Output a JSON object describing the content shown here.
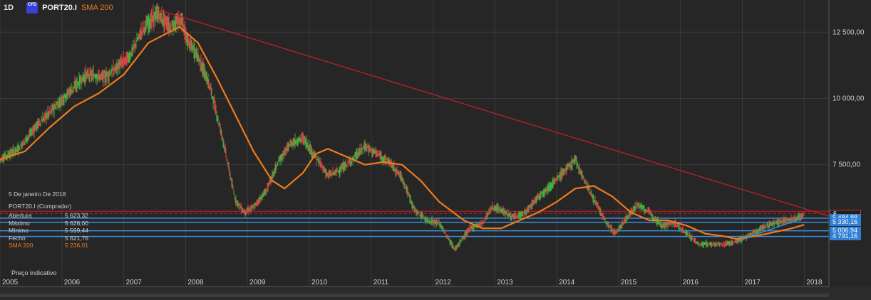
{
  "header": {
    "timeframe": "1D",
    "cfd_badge": "CFD",
    "symbol": "PORT20.I",
    "indicator": "SMA 200"
  },
  "info_panel": {
    "date": "5 De janeiro De 2018",
    "title": "PORT20.I (Comprador)",
    "rows": [
      {
        "label": "Abertura",
        "value": "5 623,32"
      },
      {
        "label": "Máximo",
        "value": "5 628,00"
      },
      {
        "label": "Mínimo",
        "value": "5 599,44"
      },
      {
        "label": "Fecho",
        "value": "5 621,76"
      },
      {
        "label": "SMA 200",
        "value": "5 236,01"
      }
    ],
    "footer": "Preço indicativo"
  },
  "price_tags": [
    {
      "value": 5665.17,
      "text": "5 665,17",
      "style": "red"
    },
    {
      "value": 5484.88,
      "text": "5 484,88",
      "style": "blue"
    },
    {
      "value": 5330.16,
      "text": "5 330,16",
      "style": "blue"
    },
    {
      "value": 5006.94,
      "text": "5 006,94",
      "style": "blue"
    },
    {
      "value": 4791.16,
      "text": "4 791,16",
      "style": "blue"
    }
  ],
  "colors": {
    "background": "#262626",
    "grid": "#3a3a3a",
    "up_candle": "#3fae3f",
    "down_candle": "#d64545",
    "sma": "#ee7b1f",
    "trendline": "#c8202a",
    "level": "#3b8fe0"
  },
  "chart_data": {
    "type": "candlestick",
    "timeframe": "1D",
    "x_axis_ticks": [
      "2005",
      "2006",
      "2007",
      "2008",
      "2009",
      "2010",
      "2011",
      "2012",
      "2013",
      "2014",
      "2015",
      "2016",
      "2017",
      "2018"
    ],
    "y_axis_ticks": [
      12500,
      10000,
      7500
    ],
    "y_axis_labels": [
      "12 500,00",
      "10 000,00",
      "7 500,00"
    ],
    "x_range": [
      2005.0,
      2018.4
    ],
    "y_range": [
      3200,
      13500
    ],
    "grid": true,
    "series": [
      {
        "name": "PORT20.I",
        "type": "price",
        "points": [
          [
            2005.0,
            7700
          ],
          [
            2005.3,
            8100
          ],
          [
            2005.6,
            9000
          ],
          [
            2005.9,
            9700
          ],
          [
            2006.1,
            10200
          ],
          [
            2006.4,
            10900
          ],
          [
            2006.7,
            10800
          ],
          [
            2006.9,
            11200
          ],
          [
            2007.1,
            11600
          ],
          [
            2007.3,
            12600
          ],
          [
            2007.55,
            13200
          ],
          [
            2007.75,
            12700
          ],
          [
            2007.95,
            13000
          ],
          [
            2008.0,
            12300
          ],
          [
            2008.2,
            11600
          ],
          [
            2008.4,
            10400
          ],
          [
            2008.6,
            8500
          ],
          [
            2008.8,
            6200
          ],
          [
            2008.95,
            5700
          ],
          [
            2009.1,
            5900
          ],
          [
            2009.3,
            6500
          ],
          [
            2009.5,
            7600
          ],
          [
            2009.7,
            8300
          ],
          [
            2009.9,
            8500
          ],
          [
            2010.1,
            7800
          ],
          [
            2010.3,
            7100
          ],
          [
            2010.5,
            7300
          ],
          [
            2010.7,
            7700
          ],
          [
            2010.9,
            8200
          ],
          [
            2011.1,
            7900
          ],
          [
            2011.3,
            7600
          ],
          [
            2011.5,
            7000
          ],
          [
            2011.7,
            5800
          ],
          [
            2011.9,
            5400
          ],
          [
            2012.1,
            5300
          ],
          [
            2012.35,
            4300
          ],
          [
            2012.6,
            5100
          ],
          [
            2012.8,
            5300
          ],
          [
            2012.95,
            5900
          ],
          [
            2013.1,
            5800
          ],
          [
            2013.3,
            5500
          ],
          [
            2013.5,
            5700
          ],
          [
            2013.7,
            6300
          ],
          [
            2013.9,
            6700
          ],
          [
            2014.1,
            7200
          ],
          [
            2014.3,
            7700
          ],
          [
            2014.45,
            6900
          ],
          [
            2014.6,
            6200
          ],
          [
            2014.8,
            5300
          ],
          [
            2014.95,
            4900
          ],
          [
            2015.1,
            5400
          ],
          [
            2015.3,
            6000
          ],
          [
            2015.5,
            5700
          ],
          [
            2015.7,
            5200
          ],
          [
            2015.9,
            5300
          ],
          [
            2016.1,
            4900
          ],
          [
            2016.3,
            4500
          ],
          [
            2016.5,
            4500
          ],
          [
            2016.7,
            4500
          ],
          [
            2016.9,
            4600
          ],
          [
            2017.1,
            4800
          ],
          [
            2017.3,
            5100
          ],
          [
            2017.5,
            5300
          ],
          [
            2017.7,
            5400
          ],
          [
            2017.9,
            5500
          ],
          [
            2018.0,
            5620
          ]
        ]
      },
      {
        "name": "SMA 200",
        "type": "line",
        "points": [
          [
            2005.0,
            7700
          ],
          [
            2005.4,
            8000
          ],
          [
            2005.8,
            8900
          ],
          [
            2006.2,
            9700
          ],
          [
            2006.6,
            10200
          ],
          [
            2007.0,
            10900
          ],
          [
            2007.4,
            12100
          ],
          [
            2007.9,
            12700
          ],
          [
            2008.2,
            12100
          ],
          [
            2008.5,
            10800
          ],
          [
            2008.8,
            9400
          ],
          [
            2009.1,
            8000
          ],
          [
            2009.4,
            6900
          ],
          [
            2009.6,
            6600
          ],
          [
            2009.9,
            7200
          ],
          [
            2010.1,
            7900
          ],
          [
            2010.3,
            8100
          ],
          [
            2010.6,
            7800
          ],
          [
            2010.9,
            7500
          ],
          [
            2011.2,
            7600
          ],
          [
            2011.5,
            7500
          ],
          [
            2011.8,
            6900
          ],
          [
            2012.1,
            6100
          ],
          [
            2012.5,
            5400
          ],
          [
            2012.8,
            5100
          ],
          [
            2013.1,
            5100
          ],
          [
            2013.4,
            5400
          ],
          [
            2013.7,
            5700
          ],
          [
            2014.0,
            6100
          ],
          [
            2014.3,
            6600
          ],
          [
            2014.6,
            6700
          ],
          [
            2014.9,
            6300
          ],
          [
            2015.2,
            5700
          ],
          [
            2015.5,
            5400
          ],
          [
            2015.8,
            5400
          ],
          [
            2016.1,
            5200
          ],
          [
            2016.4,
            4900
          ],
          [
            2016.7,
            4800
          ],
          [
            2016.9,
            4700
          ],
          [
            2017.2,
            4800
          ],
          [
            2017.5,
            4950
          ],
          [
            2017.8,
            5100
          ],
          [
            2018.0,
            5236
          ]
        ]
      }
    ],
    "trendlines": [
      {
        "from": [
          2007.55,
          13350
        ],
        "to": [
          2018.55,
          5450
        ]
      },
      {
        "from": [
          2016.95,
          4650
        ],
        "to": [
          2018.0,
          5500
        ]
      }
    ],
    "horizontal_levels": [
      5665.17,
      5484.88,
      5330.16,
      5006.94,
      4791.16
    ],
    "last_values": {
      "open": 5623.32,
      "high": 5628.0,
      "low": 5599.44,
      "close": 5621.76,
      "sma_200": 5236.01
    }
  }
}
